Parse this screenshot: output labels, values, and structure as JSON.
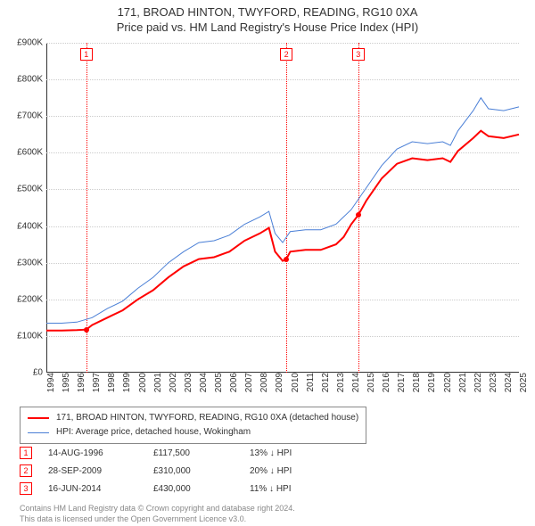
{
  "title": {
    "line1": "171, BROAD HINTON, TWYFORD, READING, RG10 0XA",
    "line2": "Price paid vs. HM Land Registry's House Price Index (HPI)"
  },
  "chart": {
    "type": "line",
    "background_color": "#ffffff",
    "grid_color": "#cccccc",
    "axis_color": "#333333",
    "x": {
      "min": 1994,
      "max": 2025,
      "ticks": [
        1994,
        1995,
        1996,
        1997,
        1998,
        1999,
        2000,
        2001,
        2002,
        2003,
        2004,
        2005,
        2006,
        2007,
        2008,
        2009,
        2010,
        2011,
        2012,
        2013,
        2014,
        2015,
        2016,
        2017,
        2018,
        2019,
        2020,
        2021,
        2022,
        2023,
        2024,
        2025
      ],
      "label_fontsize": 10,
      "label_rotation_deg": -90
    },
    "y": {
      "min": 0,
      "max": 900000,
      "ticks": [
        0,
        100000,
        200000,
        300000,
        400000,
        500000,
        600000,
        700000,
        800000,
        900000
      ],
      "tick_labels": [
        "£0",
        "£100K",
        "£200K",
        "£300K",
        "£400K",
        "£500K",
        "£600K",
        "£700K",
        "£800K",
        "£900K"
      ],
      "label_fontsize": 10
    },
    "series": [
      {
        "name": "price_paid",
        "label": "171, BROAD HINTON, TWYFORD, READING, RG10 0XA (detached house)",
        "color": "#ff0000",
        "line_width": 2,
        "points": [
          [
            1994.0,
            115000
          ],
          [
            1995.0,
            115000
          ],
          [
            1996.0,
            116000
          ],
          [
            1996.62,
            117500
          ],
          [
            1997.0,
            130000
          ],
          [
            1998.0,
            150000
          ],
          [
            1999.0,
            170000
          ],
          [
            2000.0,
            200000
          ],
          [
            2001.0,
            225000
          ],
          [
            2002.0,
            260000
          ],
          [
            2003.0,
            290000
          ],
          [
            2004.0,
            310000
          ],
          [
            2005.0,
            315000
          ],
          [
            2006.0,
            330000
          ],
          [
            2007.0,
            360000
          ],
          [
            2008.0,
            380000
          ],
          [
            2008.6,
            395000
          ],
          [
            2009.0,
            330000
          ],
          [
            2009.5,
            305000
          ],
          [
            2009.74,
            310000
          ],
          [
            2010.0,
            330000
          ],
          [
            2011.0,
            335000
          ],
          [
            2012.0,
            335000
          ],
          [
            2013.0,
            350000
          ],
          [
            2013.5,
            370000
          ],
          [
            2014.0,
            405000
          ],
          [
            2014.46,
            430000
          ],
          [
            2015.0,
            470000
          ],
          [
            2016.0,
            530000
          ],
          [
            2017.0,
            570000
          ],
          [
            2018.0,
            585000
          ],
          [
            2019.0,
            580000
          ],
          [
            2020.0,
            585000
          ],
          [
            2020.5,
            575000
          ],
          [
            2021.0,
            605000
          ],
          [
            2022.0,
            640000
          ],
          [
            2022.5,
            660000
          ],
          [
            2023.0,
            645000
          ],
          [
            2024.0,
            640000
          ],
          [
            2025.0,
            650000
          ]
        ]
      },
      {
        "name": "hpi",
        "label": "HPI: Average price, detached house, Wokingham",
        "color": "#4a7fd6",
        "line_width": 1,
        "points": [
          [
            1994.0,
            135000
          ],
          [
            1995.0,
            135000
          ],
          [
            1996.0,
            138000
          ],
          [
            1997.0,
            150000
          ],
          [
            1998.0,
            175000
          ],
          [
            1999.0,
            195000
          ],
          [
            2000.0,
            230000
          ],
          [
            2001.0,
            260000
          ],
          [
            2002.0,
            300000
          ],
          [
            2003.0,
            330000
          ],
          [
            2004.0,
            355000
          ],
          [
            2005.0,
            360000
          ],
          [
            2006.0,
            375000
          ],
          [
            2007.0,
            405000
          ],
          [
            2008.0,
            425000
          ],
          [
            2008.6,
            440000
          ],
          [
            2009.0,
            380000
          ],
          [
            2009.5,
            355000
          ],
          [
            2010.0,
            385000
          ],
          [
            2011.0,
            390000
          ],
          [
            2012.0,
            390000
          ],
          [
            2013.0,
            405000
          ],
          [
            2014.0,
            445000
          ],
          [
            2015.0,
            505000
          ],
          [
            2016.0,
            565000
          ],
          [
            2017.0,
            610000
          ],
          [
            2018.0,
            630000
          ],
          [
            2019.0,
            625000
          ],
          [
            2020.0,
            630000
          ],
          [
            2020.5,
            620000
          ],
          [
            2021.0,
            660000
          ],
          [
            2022.0,
            715000
          ],
          [
            2022.5,
            750000
          ],
          [
            2023.0,
            720000
          ],
          [
            2024.0,
            715000
          ],
          [
            2025.0,
            725000
          ]
        ]
      }
    ],
    "markers": [
      {
        "n": "1",
        "x": 1996.62,
        "y": 117500
      },
      {
        "n": "2",
        "x": 2009.74,
        "y": 310000
      },
      {
        "n": "3",
        "x": 2014.46,
        "y": 430000
      }
    ]
  },
  "legend": {
    "items": [
      {
        "color": "#ff0000",
        "width": 2,
        "label": "171, BROAD HINTON, TWYFORD, READING, RG10 0XA (detached house)"
      },
      {
        "color": "#4a7fd6",
        "width": 1,
        "label": "HPI: Average price, detached house, Wokingham"
      }
    ]
  },
  "transactions": [
    {
      "n": "1",
      "date": "14-AUG-1996",
      "price": "£117,500",
      "diff": "13% ↓ HPI"
    },
    {
      "n": "2",
      "date": "28-SEP-2009",
      "price": "£310,000",
      "diff": "20% ↓ HPI"
    },
    {
      "n": "3",
      "date": "16-JUN-2014",
      "price": "£430,000",
      "diff": "11% ↓ HPI"
    }
  ],
  "attribution": {
    "line1": "Contains HM Land Registry data © Crown copyright and database right 2024.",
    "line2": "This data is licensed under the Open Government Licence v3.0."
  }
}
